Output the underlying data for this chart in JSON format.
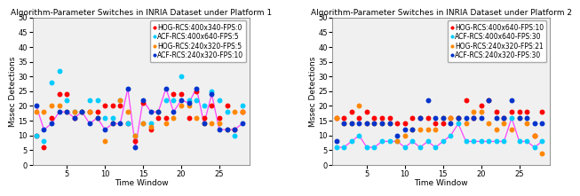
{
  "plot1": {
    "title": "Algorithm-Parameter Switches in INRIA Dataset under Platform 1",
    "xlabel": "Time Window",
    "ylabel": "Mssec Detections",
    "ylim": [
      0,
      50
    ],
    "xlim": [
      0.5,
      29
    ],
    "xticks": [
      5,
      10,
      15,
      20,
      25
    ],
    "yticks": [
      0,
      5,
      10,
      15,
      20,
      25,
      30,
      35,
      40,
      45,
      50
    ],
    "series": [
      {
        "label": "HOG-RCS:400x340-FPS:0",
        "color": "#ff0000",
        "data_x": [
          1,
          2,
          3,
          4,
          5,
          6,
          7,
          8,
          9,
          10,
          11,
          12,
          13,
          14,
          15,
          16,
          17,
          18,
          19,
          20,
          21,
          22,
          23,
          24,
          25,
          26,
          27,
          28
        ],
        "data_y": [
          10,
          6,
          16,
          24,
          24,
          16,
          18,
          18,
          18,
          20,
          20,
          20,
          14,
          8,
          21,
          12,
          16,
          16,
          24,
          24,
          16,
          25,
          16,
          20,
          16,
          20,
          12,
          18
        ]
      },
      {
        "label": "ACF-RCS:400x640-FPS:5",
        "color": "#00ccff",
        "data_x": [
          1,
          2,
          3,
          4,
          5,
          6,
          7,
          8,
          9,
          10,
          11,
          12,
          13,
          14,
          15,
          16,
          17,
          18,
          19,
          20,
          21,
          22,
          23,
          24,
          25,
          26,
          27,
          28
        ],
        "data_y": [
          10,
          8,
          28,
          32,
          22,
          18,
          18,
          22,
          22,
          16,
          16,
          22,
          14,
          10,
          14,
          14,
          18,
          22,
          22,
          30,
          22,
          22,
          20,
          25,
          22,
          18,
          10,
          20
        ]
      },
      {
        "label": "HOG-RCS:240x320-FPS:5",
        "color": "#ff8800",
        "data_x": [
          1,
          2,
          3,
          4,
          5,
          6,
          7,
          8,
          9,
          10,
          11,
          12,
          13,
          14,
          15,
          16,
          17,
          18,
          19,
          20,
          21,
          22,
          23,
          24,
          25,
          26,
          27,
          28
        ],
        "data_y": [
          18,
          18,
          20,
          20,
          18,
          18,
          18,
          18,
          16,
          8,
          14,
          22,
          18,
          10,
          14,
          13,
          18,
          14,
          16,
          20,
          20,
          16,
          14,
          14,
          14,
          12,
          18,
          18
        ]
      },
      {
        "label": "ACF-RCS:240x320-FPS:10",
        "color": "#0033cc",
        "data_x": [
          1,
          2,
          3,
          4,
          5,
          6,
          7,
          8,
          9,
          10,
          11,
          12,
          13,
          14,
          15,
          16,
          17,
          18,
          19,
          20,
          21,
          22,
          23,
          24,
          25,
          26,
          27,
          28
        ],
        "data_y": [
          20,
          12,
          14,
          18,
          18,
          16,
          18,
          14,
          16,
          12,
          14,
          14,
          26,
          6,
          22,
          18,
          18,
          26,
          18,
          22,
          21,
          26,
          14,
          24,
          12,
          12,
          12,
          14
        ],
        "line": true
      }
    ]
  },
  "plot2": {
    "title": "Algorithm-Parameter Switches in INRIA Dataset under Platform 2",
    "xlabel": "Time Window",
    "ylabel": "Mssec Detections",
    "ylim": [
      0,
      50
    ],
    "xlim": [
      0.5,
      29
    ],
    "xticks": [
      5,
      10,
      15,
      20,
      25
    ],
    "yticks": [
      0,
      5,
      10,
      15,
      20,
      25,
      30,
      35,
      40,
      45,
      50
    ],
    "series": [
      {
        "label": "HOG-RCS:400x640-FPS:10",
        "color": "#ff0000",
        "data_x": [
          1,
          2,
          3,
          4,
          5,
          6,
          7,
          8,
          9,
          10,
          11,
          12,
          13,
          14,
          15,
          16,
          17,
          18,
          19,
          20,
          21,
          22,
          23,
          24,
          25,
          26,
          27,
          28
        ],
        "data_y": [
          16,
          16,
          18,
          16,
          18,
          16,
          16,
          16,
          14,
          14,
          16,
          16,
          16,
          14,
          14,
          16,
          16,
          22,
          16,
          20,
          22,
          18,
          16,
          18,
          18,
          18,
          10,
          18
        ]
      },
      {
        "label": "ACF-RCS:400x640-FPS:30",
        "color": "#00ccff",
        "data_x": [
          1,
          2,
          3,
          4,
          5,
          6,
          7,
          8,
          9,
          10,
          11,
          12,
          13,
          14,
          15,
          16,
          17,
          18,
          19,
          20,
          21,
          22,
          23,
          24,
          25,
          26,
          27,
          28
        ],
        "data_y": [
          6,
          6,
          8,
          10,
          6,
          6,
          8,
          8,
          8,
          6,
          8,
          6,
          8,
          6,
          8,
          10,
          14,
          8,
          8,
          8,
          8,
          8,
          8,
          16,
          8,
          8,
          6,
          8
        ],
        "line": true
      },
      {
        "label": "HOG-RCS:240x320-FPS:21",
        "color": "#ff8800",
        "data_x": [
          1,
          2,
          3,
          4,
          5,
          6,
          7,
          8,
          9,
          10,
          11,
          12,
          13,
          14,
          15,
          16,
          17,
          18,
          19,
          20,
          21,
          22,
          23,
          24,
          25,
          26,
          27,
          28
        ],
        "data_y": [
          16,
          14,
          14,
          20,
          14,
          14,
          14,
          14,
          8,
          10,
          12,
          12,
          12,
          12,
          16,
          16,
          16,
          14,
          18,
          18,
          14,
          12,
          14,
          12,
          16,
          14,
          10,
          4
        ]
      },
      {
        "label": "ACF-RCS:240x320-FPS:30",
        "color": "#0033cc",
        "data_x": [
          1,
          2,
          3,
          4,
          5,
          6,
          7,
          8,
          9,
          10,
          11,
          12,
          13,
          14,
          15,
          16,
          17,
          18,
          19,
          20,
          21,
          22,
          23,
          24,
          25,
          26,
          27,
          28
        ],
        "data_y": [
          8,
          14,
          14,
          14,
          14,
          14,
          14,
          14,
          10,
          12,
          12,
          16,
          22,
          16,
          16,
          14,
          16,
          16,
          16,
          16,
          22,
          16,
          16,
          22,
          16,
          16,
          14,
          14
        ]
      }
    ]
  },
  "line_color": "#ff44ff",
  "line_style": "-",
  "line_width": 0.9,
  "marker_size": 18,
  "title_fontsize": 6.5,
  "label_fontsize": 6.5,
  "tick_fontsize": 6,
  "legend_fontsize": 5.5,
  "axes_facecolor": "#f0f0f0",
  "fig_facecolor": "#ffffff"
}
